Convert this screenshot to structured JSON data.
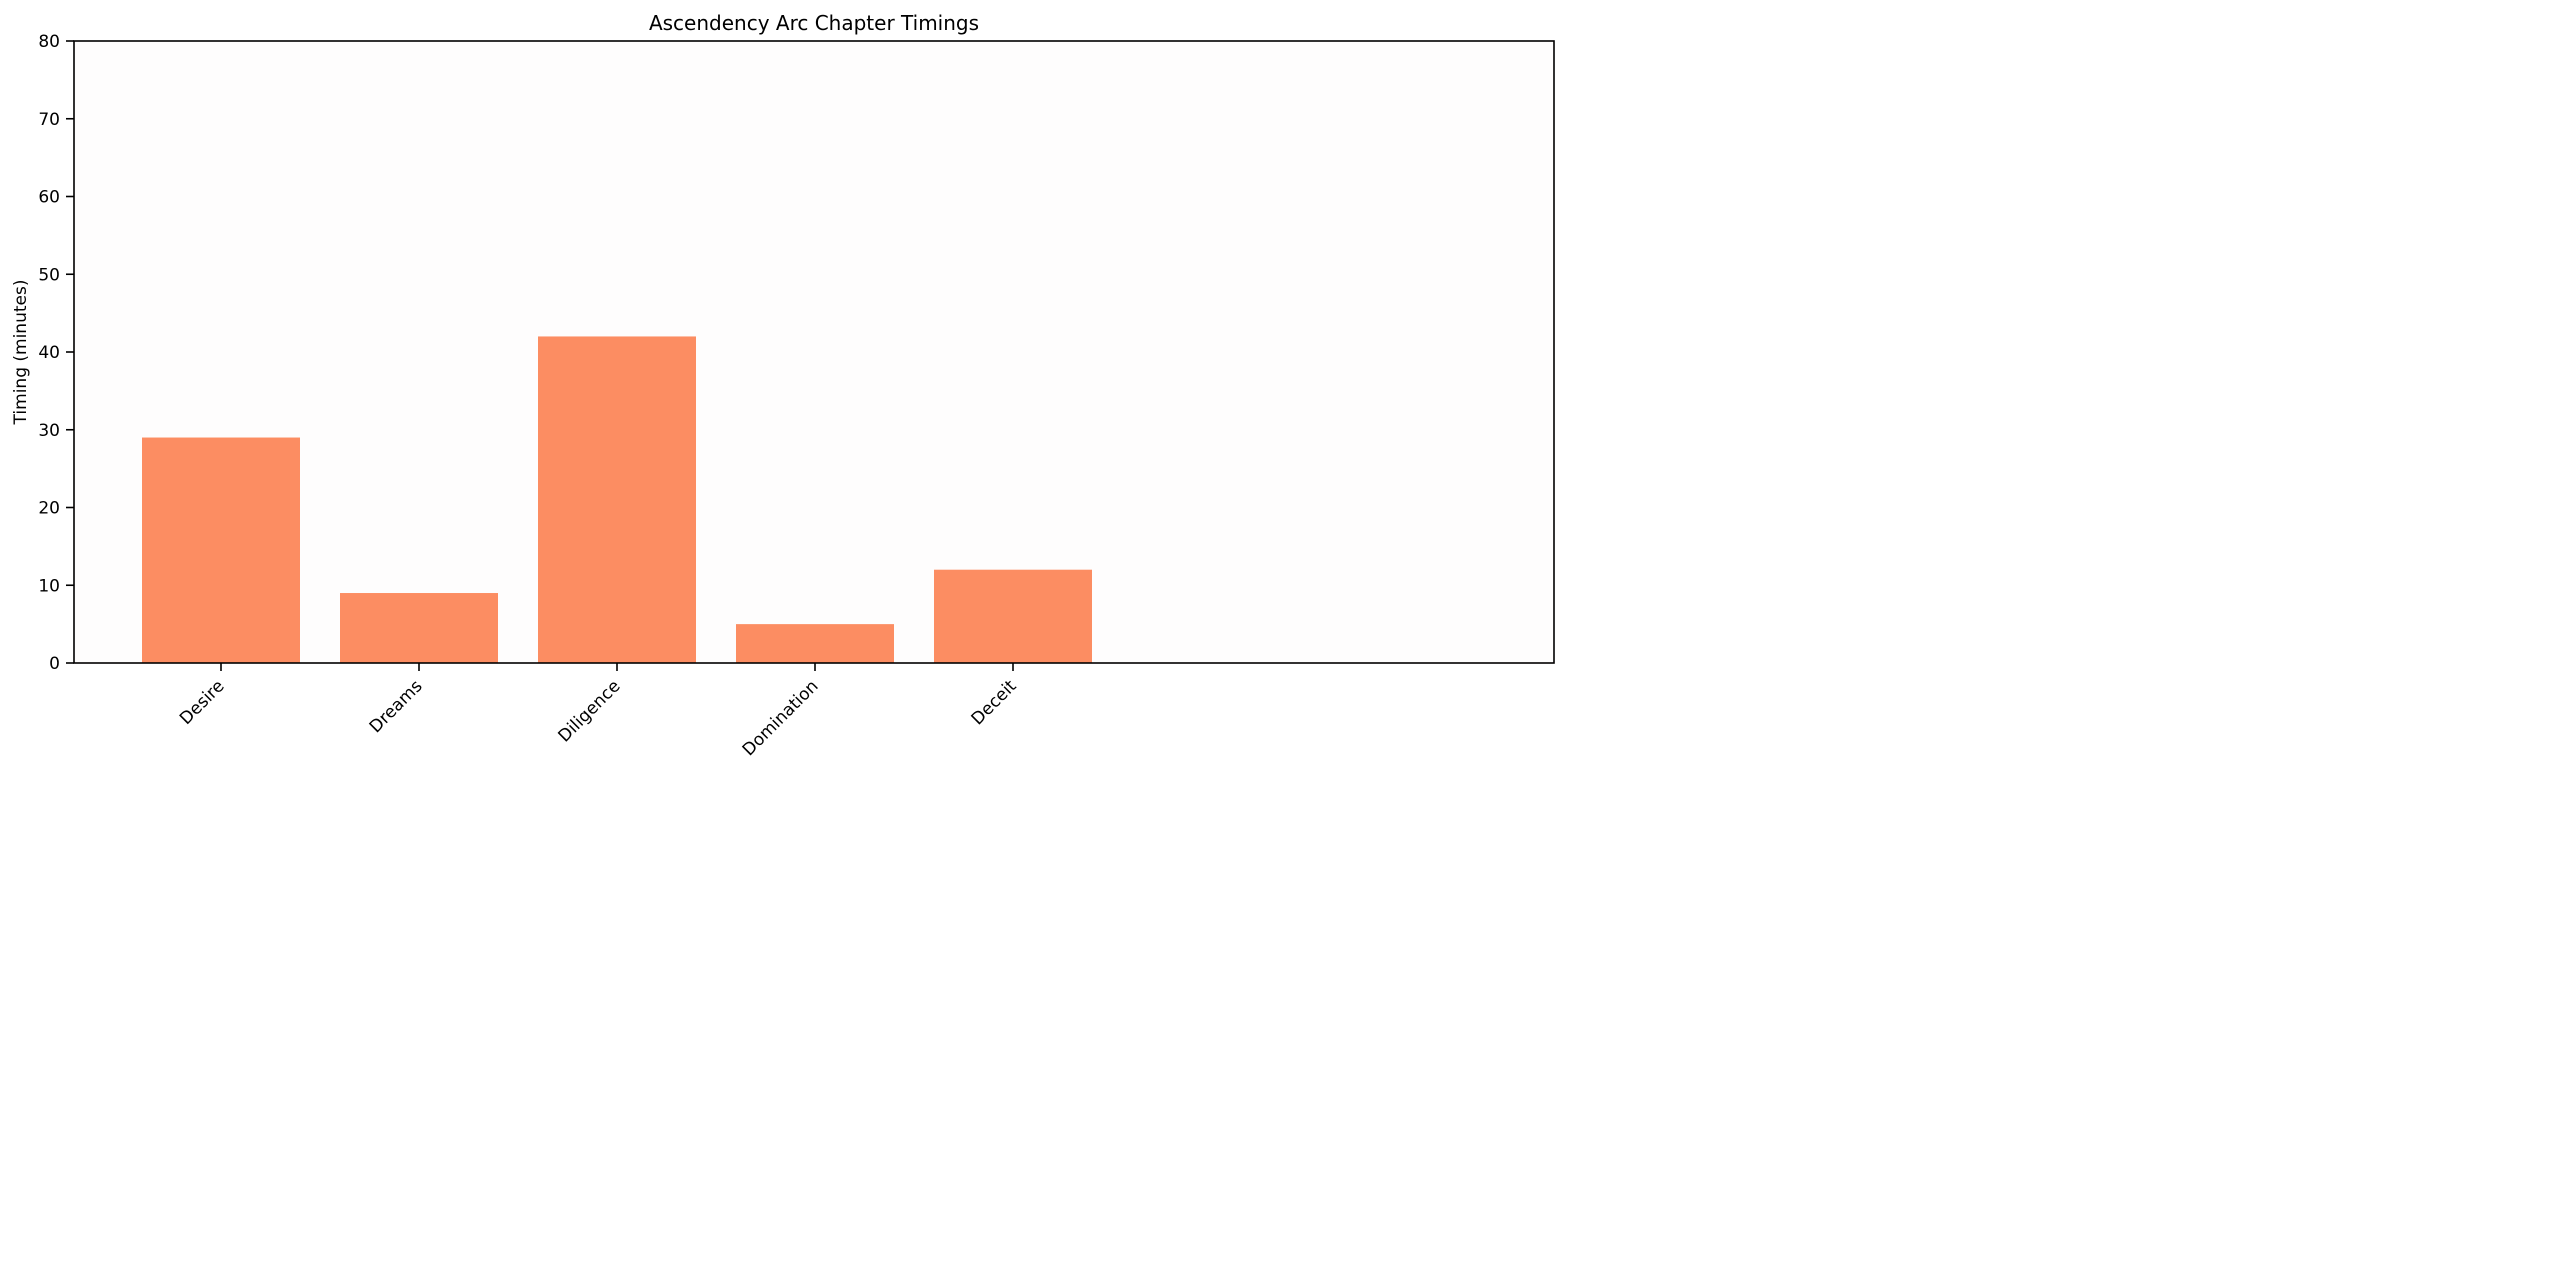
{
  "chart_data": {
    "type": "bar",
    "title": "Ascendency Arc Chapter Timings",
    "xlabel": "",
    "ylabel": "Timing (minutes)",
    "categories": [
      "Desire",
      "Dreams",
      "Diligence",
      "Domination",
      "Deceit"
    ],
    "series": [
      {
        "values": [
          29,
          9,
          42,
          5,
          12
        ]
      }
    ],
    "ylim": [
      0,
      80
    ],
    "yticks": [
      0,
      10,
      20,
      30,
      40,
      50,
      60,
      70,
      80
    ],
    "bar_color": "#fc8d62",
    "plot_background": "#fefdfd",
    "grid": false,
    "legend": "none"
  }
}
